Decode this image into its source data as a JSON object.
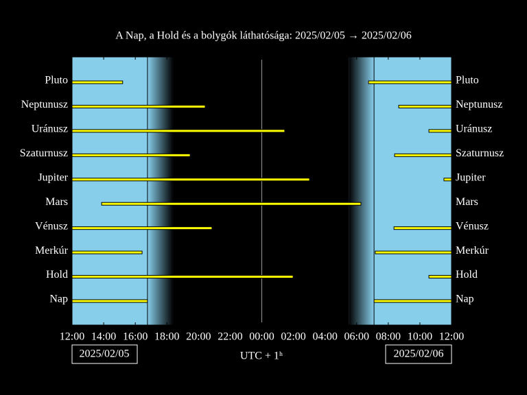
{
  "chart_data": {
    "type": "range-bar",
    "title": "A Nap, a Hold és a bolygók láthatósága: 2025/02/05 → 2025/02/06",
    "x_label": "UTC + 1ʰ",
    "start_date": "2025/02/05",
    "end_date": "2025/02/06",
    "categories": [
      "Pluto",
      "Neptunusz",
      "Uránusz",
      "Szaturnusz",
      "Jupiter",
      "Mars",
      "Vénusz",
      "Merkúr",
      "Hold",
      "Nap"
    ],
    "segments": [
      [
        [
          0,
          3.2
        ],
        [
          18.75,
          24
        ]
      ],
      [
        [
          0,
          8.42
        ],
        [
          20.66,
          24
        ]
      ],
      [
        [
          0,
          13.45
        ],
        [
          22.57,
          24
        ]
      ],
      [
        [
          0,
          7.47
        ],
        [
          20.4,
          24
        ]
      ],
      [
        [
          0,
          15.02
        ],
        [
          23.52,
          24
        ]
      ],
      [
        [
          1.87,
          18.27
        ]
      ],
      [
        [
          0,
          8.85
        ],
        [
          20.36,
          24
        ]
      ],
      [
        [
          0,
          4.43
        ],
        [
          19.18,
          24
        ]
      ],
      [
        [
          0,
          13.98
        ],
        [
          22.57,
          24
        ]
      ],
      [
        [
          0,
          4.77
        ],
        [
          19.1,
          24
        ]
      ]
    ],
    "night": [
      6.4,
      17.5
    ],
    "bar_color": "#ffff00",
    "day_color": "#87ceeb",
    "xlim": [
      0,
      24
    ],
    "xticks": [
      {
        "value": 0,
        "label": "12:00"
      },
      {
        "value": 2,
        "label": "14:00"
      },
      {
        "value": 4,
        "label": "16:00"
      },
      {
        "value": 6,
        "label": "18:00"
      },
      {
        "value": 8,
        "label": "20:00"
      },
      {
        "value": 10,
        "label": "22:00"
      },
      {
        "value": 12,
        "label": "00:00"
      },
      {
        "value": 14,
        "label": "02:00"
      },
      {
        "value": 16,
        "label": "04:00"
      },
      {
        "value": 18,
        "label": "06:00"
      },
      {
        "value": 20,
        "label": "08:00"
      },
      {
        "value": 22,
        "label": "10:00"
      },
      {
        "value": 24,
        "label": "12:00"
      }
    ],
    "midnight": 12
  }
}
